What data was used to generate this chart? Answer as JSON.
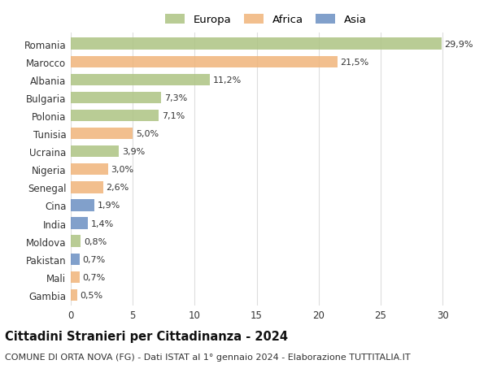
{
  "countries": [
    "Romania",
    "Marocco",
    "Albania",
    "Bulgaria",
    "Polonia",
    "Tunisia",
    "Ucraina",
    "Nigeria",
    "Senegal",
    "Cina",
    "India",
    "Moldova",
    "Pakistan",
    "Mali",
    "Gambia"
  ],
  "values": [
    29.9,
    21.5,
    11.2,
    7.3,
    7.1,
    5.0,
    3.9,
    3.0,
    2.6,
    1.9,
    1.4,
    0.8,
    0.7,
    0.7,
    0.5
  ],
  "labels": [
    "29,9%",
    "21,5%",
    "11,2%",
    "7,3%",
    "7,1%",
    "5,0%",
    "3,9%",
    "3,0%",
    "2,6%",
    "1,9%",
    "1,4%",
    "0,8%",
    "0,7%",
    "0,7%",
    "0,5%"
  ],
  "continents": [
    "Europa",
    "Africa",
    "Europa",
    "Europa",
    "Europa",
    "Africa",
    "Europa",
    "Africa",
    "Africa",
    "Asia",
    "Asia",
    "Europa",
    "Asia",
    "Africa",
    "Africa"
  ],
  "colors": {
    "Europa": "#adc483",
    "Africa": "#f0b47a",
    "Asia": "#6b8fc2"
  },
  "title": "Cittadini Stranieri per Cittadinanza - 2024",
  "subtitle": "COMUNE DI ORTA NOVA (FG) - Dati ISTAT al 1° gennaio 2024 - Elaborazione TUTTITALIA.IT",
  "xlim": [
    0,
    31.5
  ],
  "xticks": [
    0,
    5,
    10,
    15,
    20,
    25,
    30
  ],
  "background_color": "#ffffff",
  "bar_height": 0.65,
  "label_fontsize": 8,
  "tick_fontsize": 8.5,
  "title_fontsize": 10.5,
  "subtitle_fontsize": 8
}
